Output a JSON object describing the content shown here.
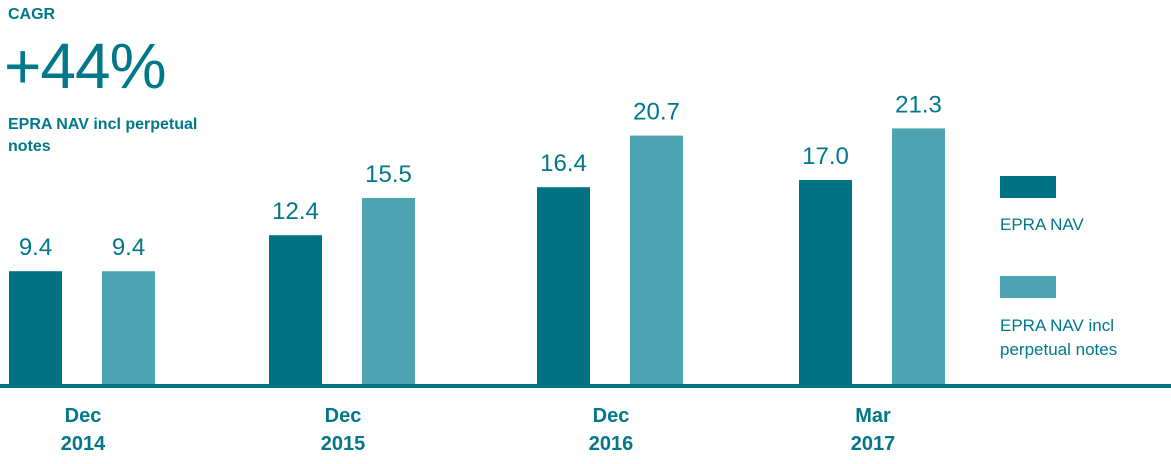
{
  "headline": {
    "label": "CAGR",
    "value": "+44%",
    "description": "EPRA NAV incl perpetual notes"
  },
  "colors": {
    "dark": "#007284",
    "light": "#4fa4b4",
    "text": "#00788a"
  },
  "chart_data": {
    "type": "bar",
    "categories": [
      {
        "line1": "Dec",
        "line2": "2014"
      },
      {
        "line1": "Dec",
        "line2": "2015"
      },
      {
        "line1": "Dec",
        "line2": "2016"
      },
      {
        "line1": "Mar",
        "line2": "2017"
      }
    ],
    "series": [
      {
        "name": "EPRA NAV",
        "values": [
          9.4,
          12.4,
          16.4,
          17.0
        ],
        "labels": [
          "9.4",
          "12.4",
          "16.4",
          "17.0"
        ]
      },
      {
        "name": "EPRA NAV incl perpetual notes",
        "values": [
          9.4,
          15.5,
          20.7,
          21.3
        ],
        "labels": [
          "9.4",
          "15.5",
          "20.7",
          "21.3"
        ]
      }
    ],
    "ylim": [
      0,
      25
    ],
    "grid": false,
    "legend": "right"
  }
}
